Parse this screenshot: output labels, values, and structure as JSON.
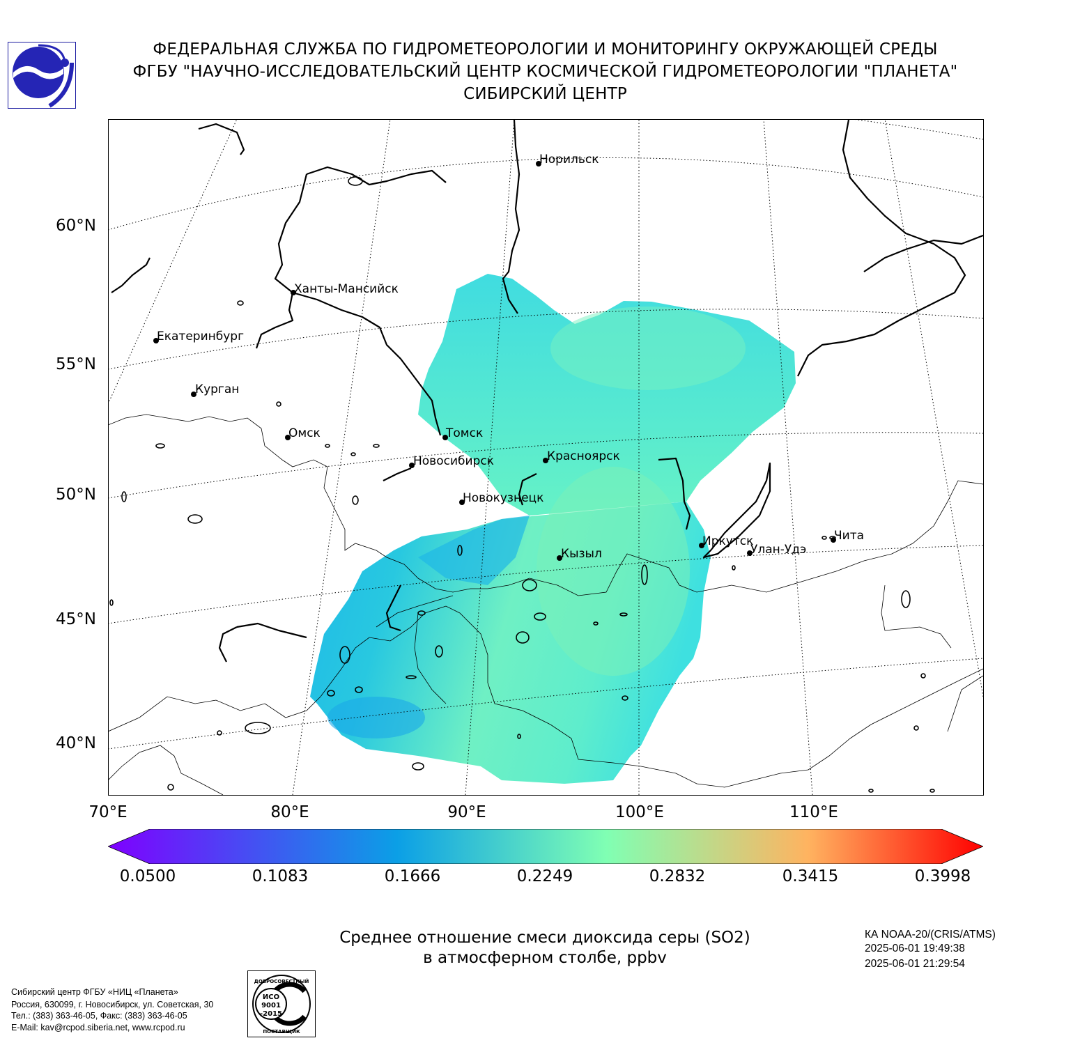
{
  "header": {
    "line1": "ФЕДЕРАЛЬНАЯ СЛУЖБА ПО ГИДРОМЕТЕОРОЛОГИИ И МОНИТОРИНГУ ОКРУЖАЮЩЕЙ СРЕДЫ",
    "line2": "ФГБУ \"НАУЧНО-ИССЛЕДОВАТЕЛЬСКИЙ ЦЕНТР КОСМИЧЕСКОЙ ГИДРОМЕТЕОРОЛОГИИ \"ПЛАНЕТА\"",
    "line3": "СИБИРСКИЙ ЦЕНТР"
  },
  "map": {
    "lat_labels": [
      "60°N",
      "55°N",
      "50°N",
      "45°N",
      "40°N"
    ],
    "lon_labels": [
      "70°E",
      "80°E",
      "90°E",
      "100°E",
      "110°E"
    ],
    "cities": [
      "Норильск",
      "Ханты-Мансийск",
      "Екатеринбург",
      "Курган",
      "Омск",
      "Томск",
      "Новосибирск",
      "Красноярск",
      "Новокузнецк",
      "Иркутск",
      "Улан-Удэ",
      "Чита",
      "Кызыл"
    ]
  },
  "colorbar": {
    "ticks": [
      "0.0500",
      "0.1083",
      "0.1666",
      "0.2249",
      "0.2832",
      "0.3415",
      "0.3998"
    ],
    "colors": [
      "#7f00ff",
      "#0b9fe6",
      "#80ffb3",
      "#ffb360",
      "#ff0000"
    ]
  },
  "product": {
    "title_line1": "Среднее отношение смеси диоксида серы (SO2)",
    "title_line2": "в атмосферном столбе, ppbv"
  },
  "satellite": {
    "name": "КА NOAA-20/(CRIS/ATMS)",
    "time_start": "2025-06-01 19:49:38",
    "time_end": "2025-06-01 21:29:54"
  },
  "footer": {
    "line1": "Сибирский центр ФГБУ «НИЦ «Планета»",
    "line2": "Россия, 630099, г. Новосибирск, ул. Советская, 30",
    "line3": "Тел.: (383) 363-46-05, Факс: (383) 363-46-05",
    "line4": "E-Mail: kav@rcpod.siberia.net, www.rcpod.ru"
  },
  "iso_badge": {
    "top_text": "ДОБРОСОВЕСТНЫЙ",
    "code1": "ИСО",
    "code2": "9001",
    "code3": "-2015",
    "bottom_text": "ПОСТАВЩИК"
  }
}
